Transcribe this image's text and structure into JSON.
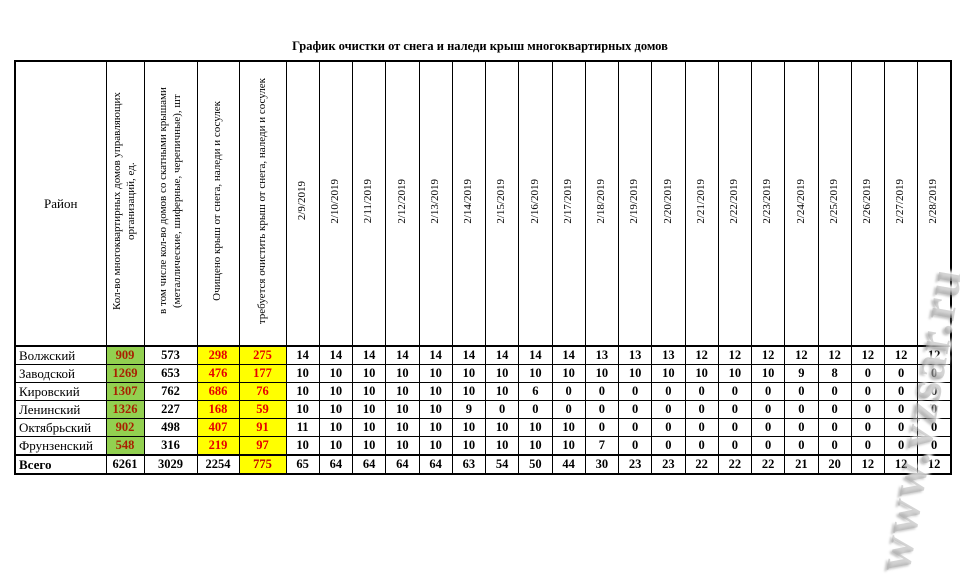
{
  "title": "График очистки от снега и наледи крыш  многоквартирных домов",
  "watermark": "www.vzsar.ru",
  "colors": {
    "green_fill": "#92d050",
    "yellow_fill": "#ffff00",
    "green_cell_text": "#a82000",
    "yellow_cell_text": "#e60000",
    "border": "#000000"
  },
  "table": {
    "corner_header": "Район",
    "summary_headers": [
      "Кол-во многоквартирных домов  управляющих организаций, ед.",
      "в том числе кол-во  домов со скатными крышами (металлические, шиферные, черепичные), шт",
      "Очищено крыш от снега, наледи и сосулек",
      "требуется очистить крыш от снега, наледи и сосулек"
    ],
    "date_headers": [
      "2/9/2019",
      "2/10/2019",
      "2/11/2019",
      "2/12/2019",
      "2/13/2019",
      "2/14/2019",
      "2/15/2019",
      "2/16/2019",
      "2/17/2019",
      "2/18/2019",
      "2/19/2019",
      "2/20/2019",
      "2/21/2019",
      "2/22/2019",
      "2/23/2019",
      "2/24/2019",
      "2/25/2019",
      "2/26/2019",
      "2/27/2019",
      "2/28/2019"
    ],
    "rows": [
      {
        "district": "Волжский",
        "total_homes": "909",
        "pitched_roof_homes": "573",
        "cleaned": "298",
        "to_clean": "275",
        "daily": [
          "14",
          "14",
          "14",
          "14",
          "14",
          "14",
          "14",
          "14",
          "14",
          "13",
          "13",
          "13",
          "12",
          "12",
          "12",
          "12",
          "12",
          "12",
          "12",
          "12"
        ]
      },
      {
        "district": "Заводской",
        "total_homes": "1269",
        "pitched_roof_homes": "653",
        "cleaned": "476",
        "to_clean": "177",
        "daily": [
          "10",
          "10",
          "10",
          "10",
          "10",
          "10",
          "10",
          "10",
          "10",
          "10",
          "10",
          "10",
          "10",
          "10",
          "10",
          "9",
          "8",
          "0",
          "0",
          "0"
        ]
      },
      {
        "district": "Кировский",
        "total_homes": "1307",
        "pitched_roof_homes": "762",
        "cleaned": "686",
        "to_clean": "76",
        "daily": [
          "10",
          "10",
          "10",
          "10",
          "10",
          "10",
          "10",
          "6",
          "0",
          "0",
          "0",
          "0",
          "0",
          "0",
          "0",
          "0",
          "0",
          "0",
          "0",
          "0"
        ]
      },
      {
        "district": "Ленинский",
        "total_homes": "1326",
        "pitched_roof_homes": "227",
        "cleaned": "168",
        "to_clean": "59",
        "daily": [
          "10",
          "10",
          "10",
          "10",
          "10",
          "9",
          "0",
          "0",
          "0",
          "0",
          "0",
          "0",
          "0",
          "0",
          "0",
          "0",
          "0",
          "0",
          "0",
          "0"
        ]
      },
      {
        "district": "Октябрьский",
        "total_homes": "902",
        "pitched_roof_homes": "498",
        "cleaned": "407",
        "to_clean": "91",
        "daily": [
          "11",
          "10",
          "10",
          "10",
          "10",
          "10",
          "10",
          "10",
          "10",
          "0",
          "0",
          "0",
          "0",
          "0",
          "0",
          "0",
          "0",
          "0",
          "0",
          "0"
        ]
      },
      {
        "district": "Фрунзенский",
        "total_homes": "548",
        "pitched_roof_homes": "316",
        "cleaned": "219",
        "to_clean": "97",
        "daily": [
          "10",
          "10",
          "10",
          "10",
          "10",
          "10",
          "10",
          "10",
          "10",
          "7",
          "0",
          "0",
          "0",
          "0",
          "0",
          "0",
          "0",
          "0",
          "0",
          "0"
        ]
      }
    ],
    "total_row": {
      "district": "Всего",
      "total_homes": "6261",
      "pitched_roof_homes": "3029",
      "cleaned": "2254",
      "to_clean": "775",
      "daily": [
        "65",
        "64",
        "64",
        "64",
        "64",
        "63",
        "54",
        "50",
        "44",
        "30",
        "23",
        "23",
        "22",
        "22",
        "22",
        "21",
        "20",
        "12",
        "12",
        "12"
      ]
    }
  }
}
